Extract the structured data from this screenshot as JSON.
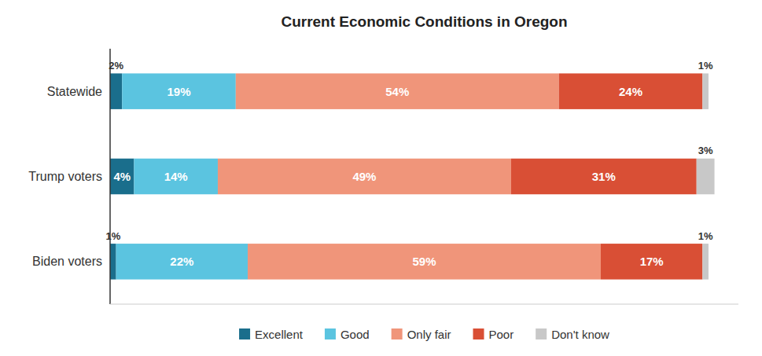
{
  "chart_data": {
    "type": "bar",
    "orientation": "horizontal",
    "stacked": true,
    "title": "Current Economic Conditions in Oregon",
    "categories": [
      "Biden voters",
      "Trump voters",
      "Statewide"
    ],
    "series": [
      {
        "name": "Excellent",
        "color": "#1a6e8c",
        "values": [
          1,
          4,
          2
        ],
        "value_labels": [
          "1%",
          "4%",
          "2%"
        ]
      },
      {
        "name": "Good",
        "color": "#5bc4e0",
        "values": [
          22,
          14,
          19
        ],
        "value_labels": [
          "22%",
          "14%",
          "19%"
        ]
      },
      {
        "name": "Only fair",
        "color": "#f0957a",
        "values": [
          59,
          49,
          54
        ],
        "value_labels": [
          "59%",
          "49%",
          "54%"
        ]
      },
      {
        "name": "Poor",
        "color": "#d94f35",
        "values": [
          17,
          31,
          24
        ],
        "value_labels": [
          "17%",
          "31%",
          "24%"
        ]
      },
      {
        "name": "Don't know",
        "color": "#c8c8c8",
        "values": [
          1,
          3,
          1
        ],
        "value_labels": [
          "1%",
          "3%",
          "1%"
        ]
      }
    ],
    "xlim": [
      0,
      105
    ],
    "data_labels": true,
    "tick_labels": "y",
    "grid": false,
    "legend": "bottom"
  }
}
